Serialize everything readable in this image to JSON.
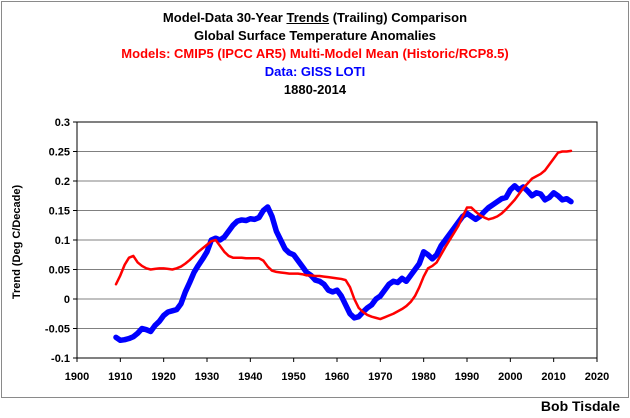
{
  "title": {
    "line1_pre": "Model-Data 30-Year ",
    "line1_underlined": "Trends",
    "line1_post": " (Trailing) Comparison",
    "line2": "Global Surface Temperature Anomalies",
    "line3": "Models: CMIP5 (IPCC AR5) Multi-Model Mean (Historic/RCP8.5)",
    "line4": "Data: GISS LOTI",
    "line5": "1880-2014"
  },
  "credit": "Bob Tisdale",
  "colors": {
    "models": "#ff0000",
    "data": "#0000ff",
    "grid": "#808080"
  },
  "chart_data": {
    "type": "line",
    "ylabel": "Trend (Deg C/Decade)",
    "xlabel": "",
    "xlim": [
      1900,
      2020
    ],
    "ylim": [
      -0.1,
      0.3
    ],
    "x_ticks": [
      1900,
      1910,
      1920,
      1930,
      1940,
      1950,
      1960,
      1970,
      1980,
      1990,
      2000,
      2010,
      2020
    ],
    "y_ticks": [
      -0.1,
      -0.05,
      0,
      0.05,
      0.1,
      0.15,
      0.2,
      0.25,
      0.3
    ],
    "y_tick_labels": [
      "-0.1",
      "-0.05",
      "0",
      "0.05",
      "0.1",
      "0.15",
      "0.2",
      "0.25",
      "0.3"
    ],
    "grid": "horizontal",
    "series": [
      {
        "name": "Models: CMIP5 (IPCC AR5) Multi-Model Mean (Historic/RCP8.5)",
        "color": "#ff0000",
        "x": [
          1909,
          1910,
          1911,
          1912,
          1913,
          1914,
          1915,
          1916,
          1917,
          1918,
          1919,
          1920,
          1921,
          1922,
          1923,
          1924,
          1925,
          1926,
          1927,
          1928,
          1929,
          1930,
          1931,
          1932,
          1933,
          1934,
          1935,
          1936,
          1937,
          1938,
          1939,
          1940,
          1941,
          1942,
          1943,
          1944,
          1945,
          1946,
          1947,
          1948,
          1949,
          1950,
          1951,
          1952,
          1953,
          1954,
          1955,
          1956,
          1957,
          1958,
          1959,
          1960,
          1961,
          1962,
          1963,
          1964,
          1965,
          1966,
          1967,
          1968,
          1969,
          1970,
          1971,
          1972,
          1973,
          1974,
          1975,
          1976,
          1977,
          1978,
          1979,
          1980,
          1981,
          1982,
          1983,
          1984,
          1985,
          1986,
          1987,
          1988,
          1989,
          1990,
          1991,
          1992,
          1993,
          1994,
          1995,
          1996,
          1997,
          1998,
          1999,
          2000,
          2001,
          2002,
          2003,
          2004,
          2005,
          2006,
          2007,
          2008,
          2009,
          2010,
          2011,
          2012,
          2013,
          2014
        ],
        "values": [
          0.025,
          0.04,
          0.058,
          0.07,
          0.073,
          0.062,
          0.056,
          0.052,
          0.05,
          0.051,
          0.052,
          0.052,
          0.051,
          0.05,
          0.052,
          0.055,
          0.06,
          0.066,
          0.073,
          0.08,
          0.086,
          0.092,
          0.098,
          0.1,
          0.09,
          0.08,
          0.073,
          0.07,
          0.07,
          0.07,
          0.069,
          0.069,
          0.069,
          0.069,
          0.065,
          0.055,
          0.048,
          0.046,
          0.045,
          0.044,
          0.043,
          0.043,
          0.043,
          0.042,
          0.04,
          0.04,
          0.039,
          0.039,
          0.038,
          0.037,
          0.036,
          0.035,
          0.034,
          0.032,
          0.02,
          0.0,
          -0.015,
          -0.022,
          -0.027,
          -0.03,
          -0.032,
          -0.034,
          -0.031,
          -0.028,
          -0.025,
          -0.021,
          -0.017,
          -0.012,
          -0.005,
          0.005,
          0.02,
          0.038,
          0.052,
          0.056,
          0.062,
          0.075,
          0.088,
          0.1,
          0.112,
          0.124,
          0.14,
          0.155,
          0.155,
          0.148,
          0.142,
          0.138,
          0.135,
          0.137,
          0.14,
          0.145,
          0.152,
          0.16,
          0.168,
          0.178,
          0.188,
          0.196,
          0.204,
          0.208,
          0.212,
          0.218,
          0.228,
          0.238,
          0.248,
          0.25,
          0.25,
          0.251
        ]
      },
      {
        "name": "Data: GISS LOTI",
        "color": "#0000ff",
        "x": [
          1909,
          1910,
          1911,
          1912,
          1913,
          1914,
          1915,
          1916,
          1917,
          1918,
          1919,
          1920,
          1921,
          1922,
          1923,
          1924,
          1925,
          1926,
          1927,
          1928,
          1929,
          1930,
          1931,
          1932,
          1933,
          1934,
          1935,
          1936,
          1937,
          1938,
          1939,
          1940,
          1941,
          1942,
          1943,
          1944,
          1945,
          1946,
          1947,
          1948,
          1949,
          1950,
          1951,
          1952,
          1953,
          1954,
          1955,
          1956,
          1957,
          1958,
          1959,
          1960,
          1961,
          1962,
          1963,
          1964,
          1965,
          1966,
          1967,
          1968,
          1969,
          1970,
          1971,
          1972,
          1973,
          1974,
          1975,
          1976,
          1977,
          1978,
          1979,
          1980,
          1981,
          1982,
          1983,
          1984,
          1985,
          1986,
          1987,
          1988,
          1989,
          1990,
          1991,
          1992,
          1993,
          1994,
          1995,
          1996,
          1997,
          1998,
          1999,
          2000,
          2001,
          2002,
          2003,
          2004,
          2005,
          2006,
          2007,
          2008,
          2009,
          2010,
          2011,
          2012,
          2013,
          2014
        ],
        "values": [
          -0.065,
          -0.07,
          -0.069,
          -0.067,
          -0.064,
          -0.058,
          -0.05,
          -0.052,
          -0.055,
          -0.045,
          -0.038,
          -0.028,
          -0.022,
          -0.02,
          -0.018,
          -0.008,
          0.012,
          0.028,
          0.045,
          0.057,
          0.068,
          0.08,
          0.1,
          0.103,
          0.1,
          0.105,
          0.115,
          0.125,
          0.132,
          0.134,
          0.133,
          0.136,
          0.135,
          0.138,
          0.15,
          0.156,
          0.14,
          0.115,
          0.1,
          0.085,
          0.078,
          0.075,
          0.065,
          0.055,
          0.045,
          0.04,
          0.032,
          0.03,
          0.025,
          0.015,
          0.012,
          0.015,
          0.005,
          -0.01,
          -0.025,
          -0.032,
          -0.03,
          -0.022,
          -0.015,
          -0.01,
          0.0,
          0.005,
          0.015,
          0.025,
          0.03,
          0.028,
          0.035,
          0.03,
          0.04,
          0.05,
          0.06,
          0.08,
          0.075,
          0.068,
          0.075,
          0.09,
          0.1,
          0.11,
          0.12,
          0.13,
          0.14,
          0.145,
          0.14,
          0.135,
          0.14,
          0.148,
          0.155,
          0.16,
          0.165,
          0.17,
          0.172,
          0.185,
          0.192,
          0.185,
          0.19,
          0.183,
          0.175,
          0.18,
          0.178,
          0.168,
          0.172,
          0.18,
          0.175,
          0.168,
          0.17,
          0.165
        ]
      }
    ]
  }
}
